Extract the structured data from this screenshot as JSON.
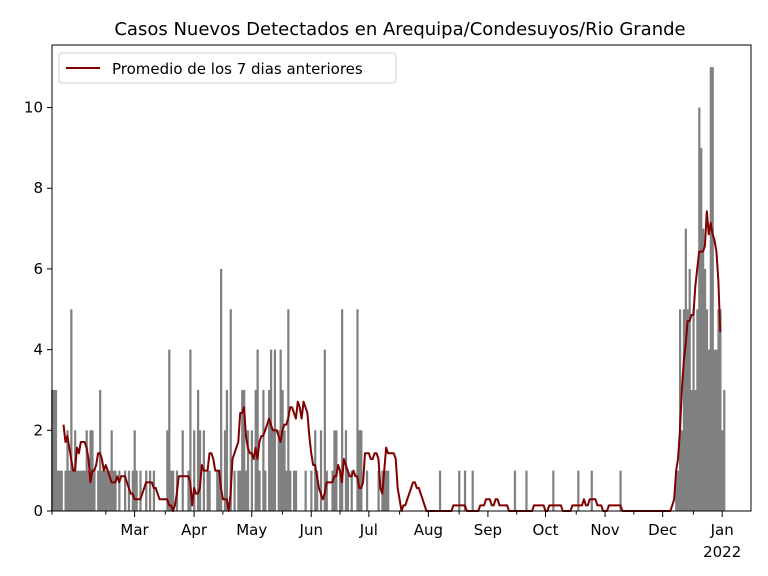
{
  "chart_data": {
    "type": "bar",
    "title": "Casos Nuevos Detectados en Arequipa/Condesuyos/Rio Grande",
    "xlabel": "",
    "ylabel": "",
    "ylim": [
      0,
      11.55
    ],
    "x_range": [
      "2021-02-01",
      "2022-01-31"
    ],
    "yticks": [
      0,
      2,
      4,
      6,
      8,
      10
    ],
    "xticks": [
      {
        "date": "2021-03-01",
        "label": "Mar"
      },
      {
        "date": "2021-04-01",
        "label": "Apr"
      },
      {
        "date": "2021-05-01",
        "label": "May"
      },
      {
        "date": "2021-06-01",
        "label": "Jun"
      },
      {
        "date": "2021-07-01",
        "label": "Jul"
      },
      {
        "date": "2021-08-01",
        "label": "Aug"
      },
      {
        "date": "2021-09-01",
        "label": "Sep"
      },
      {
        "date": "2021-10-01",
        "label": "Oct"
      },
      {
        "date": "2021-11-01",
        "label": "Nov"
      },
      {
        "date": "2021-12-01",
        "label": "Dec"
      },
      {
        "date": "2022-01-01",
        "label": "Jan"
      }
    ],
    "year_label": "2022",
    "bars": {
      "color": "#808080",
      "start": "2021-02-01",
      "values": [
        3,
        3,
        3,
        1,
        1,
        1,
        0,
        1,
        2,
        1,
        5,
        1,
        2,
        1,
        1,
        1,
        1,
        1,
        2,
        1,
        2,
        2,
        1,
        0,
        1,
        3,
        1,
        1,
        1,
        1,
        1,
        2,
        1,
        1,
        0,
        1,
        0,
        0,
        1,
        0,
        1,
        0,
        1,
        2,
        1,
        0,
        1,
        0,
        0,
        1,
        0,
        1,
        0,
        1,
        0,
        0,
        0,
        0,
        0,
        0,
        2,
        4,
        1,
        1,
        0,
        1,
        0,
        0,
        2,
        0,
        0,
        1,
        4,
        0,
        2,
        0,
        3,
        2,
        0,
        2,
        0,
        1,
        1,
        0,
        0,
        0,
        1,
        1,
        6,
        0,
        2,
        3,
        0,
        5,
        0,
        1,
        0,
        1,
        1,
        3,
        3,
        1,
        2,
        0,
        2,
        0,
        3,
        4,
        1,
        0,
        3,
        1,
        0,
        3,
        4,
        2,
        4,
        0,
        2,
        4,
        3,
        2,
        1,
        5,
        1,
        0,
        1,
        1,
        0,
        0,
        0,
        0,
        1,
        0,
        0,
        1,
        0,
        2,
        1,
        0,
        2,
        0,
        4,
        1,
        0,
        0,
        1,
        2,
        2,
        0,
        1,
        5,
        0,
        2,
        1,
        0,
        1,
        0,
        0,
        5,
        2,
        2,
        0,
        0,
        1,
        0,
        0,
        0,
        0,
        0,
        1,
        0,
        1,
        1,
        1,
        1,
        0,
        0,
        0,
        0,
        0,
        0,
        0,
        0,
        0,
        0,
        0,
        0,
        0,
        0,
        0,
        0,
        0,
        0,
        0,
        0,
        0,
        0,
        0,
        0,
        0,
        0,
        1,
        0,
        0,
        0,
        0,
        0,
        0,
        0,
        0,
        0,
        1,
        0,
        0,
        1,
        0,
        0,
        0,
        1,
        0,
        0,
        0,
        0,
        0,
        0,
        0,
        0,
        0,
        0,
        0,
        0,
        0,
        0,
        0,
        0,
        0,
        0,
        0,
        0,
        0,
        1,
        0,
        0,
        0,
        0,
        0,
        1,
        0,
        0,
        0,
        0,
        0,
        0,
        0,
        0,
        0,
        0,
        0,
        0,
        0,
        1,
        0,
        0,
        0,
        0,
        0,
        0,
        0,
        0,
        0,
        0,
        0,
        0,
        1,
        0,
        0,
        0,
        0,
        0,
        0,
        1,
        0,
        0,
        0,
        0,
        0,
        0,
        0,
        0,
        0,
        0,
        0,
        0,
        0,
        0,
        1,
        0,
        0,
        0,
        0,
        0,
        0,
        0,
        0,
        0,
        0,
        0,
        0,
        0,
        0,
        0,
        0,
        0,
        0,
        0,
        0,
        0,
        0,
        0,
        0,
        0,
        0,
        0,
        0,
        1,
        1,
        5,
        2,
        5,
        7,
        5,
        6,
        3,
        5,
        3,
        5,
        10,
        9,
        7,
        6,
        5,
        4,
        11,
        11,
        4,
        4,
        5,
        5,
        2,
        3
      ]
    },
    "series": [
      {
        "name": "Promedio de los 7 dias anteriores",
        "type": "line",
        "color": "#800000",
        "start": "2021-02-01",
        "values": [
          null,
          null,
          null,
          null,
          null,
          null,
          2.14,
          1.71,
          1.86,
          1.57,
          1.29,
          1.0,
          1.0,
          1.57,
          1.43,
          1.71,
          1.71,
          1.71,
          1.57,
          1.29,
          0.71,
          1.0,
          1.0,
          1.14,
          1.43,
          1.43,
          1.29,
          1.0,
          1.14,
          1.0,
          0.86,
          0.71,
          0.71,
          0.71,
          0.86,
          0.71,
          0.86,
          0.86,
          0.86,
          0.71,
          0.57,
          0.43,
          0.43,
          0.29,
          0.29,
          0.29,
          0.29,
          0.43,
          0.57,
          0.71,
          0.71,
          0.71,
          0.71,
          0.57,
          0.57,
          0.43,
          0.29,
          0.29,
          0.29,
          0.29,
          0.29,
          0.14,
          0.14,
          0.0,
          0.14,
          0.43,
          0.86,
          0.86,
          0.86,
          0.86,
          0.86,
          0.86,
          0.71,
          0.14,
          0.57,
          0.43,
          0.43,
          0.57,
          1.14,
          1.0,
          1.0,
          1.0,
          1.43,
          1.43,
          1.29,
          1.0,
          1.0,
          1.0,
          0.57,
          0.29,
          0.29,
          0.29,
          0.0,
          0.43,
          1.29,
          1.43,
          1.57,
          1.71,
          2.43,
          2.43,
          2.57,
          1.86,
          1.57,
          1.43,
          1.43,
          1.29,
          1.57,
          1.29,
          1.71,
          1.86,
          1.86,
          2.0,
          2.14,
          2.29,
          2.14,
          2.0,
          2.0,
          2.0,
          1.86,
          1.71,
          2.0,
          2.14,
          2.14,
          2.29,
          2.57,
          2.57,
          2.43,
          2.29,
          2.71,
          2.57,
          2.29,
          2.71,
          2.57,
          2.43,
          1.86,
          1.43,
          1.14,
          1.14,
          0.86,
          0.57,
          0.43,
          0.29,
          0.43,
          0.71,
          0.71,
          0.71,
          0.71,
          0.86,
          0.86,
          1.14,
          1.0,
          0.71,
          1.29,
          1.14,
          1.0,
          0.86,
          0.86,
          1.0,
          0.86,
          0.86,
          0.57,
          0.57,
          0.71,
          1.43,
          1.43,
          1.43,
          1.29,
          1.29,
          1.43,
          1.43,
          1.29,
          0.57,
          0.43,
          1.0,
          1.57,
          1.43,
          1.43,
          1.43,
          1.43,
          1.29,
          0.57,
          0.29,
          0.0,
          0.14,
          0.14,
          0.29,
          0.43,
          0.57,
          0.71,
          0.71,
          0.57,
          0.57,
          0.43,
          0.29,
          0.14,
          0.0,
          0.0,
          0.0,
          0.0,
          0.0,
          0.0,
          0.0,
          0.0,
          0.0,
          0.0,
          0.0,
          0.0,
          0.0,
          0.0,
          0.14,
          0.14,
          0.14,
          0.14,
          0.14,
          0.14,
          0.14,
          0.0,
          0.0,
          0.0,
          0.0,
          0.0,
          0.0,
          0.0,
          0.14,
          0.14,
          0.14,
          0.29,
          0.29,
          0.29,
          0.14,
          0.14,
          0.29,
          0.29,
          0.14,
          0.14,
          0.14,
          0.14,
          0.14,
          0.0,
          0.0,
          0.0,
          0.0,
          0.0,
          0.0,
          0.0,
          0.0,
          0.0,
          0.0,
          0.0,
          0.0,
          0.0,
          0.14,
          0.14,
          0.14,
          0.14,
          0.14,
          0.14,
          0.0,
          0.0,
          0.14,
          0.14,
          0.14,
          0.14,
          0.14,
          0.14,
          0.14,
          0.0,
          0.0,
          0.0,
          0.0,
          0.0,
          0.14,
          0.14,
          0.14,
          0.14,
          0.14,
          0.14,
          0.29,
          0.14,
          0.14,
          0.29,
          0.29,
          0.29,
          0.29,
          0.14,
          0.14,
          0.14,
          0.0,
          0.0,
          0.0,
          0.14,
          0.14,
          0.14,
          0.14,
          0.14,
          0.14,
          0.14,
          0.0,
          0.0,
          0.0,
          0.0,
          0.0,
          0.0,
          0.0,
          0.0,
          0.0,
          0.0,
          0.0,
          0.0,
          0.0,
          0.0,
          0.0,
          0.0,
          0.0,
          0.0,
          0.0,
          0.0,
          0.0,
          0.0,
          0.0,
          0.0,
          0.0,
          0.0,
          0.14,
          0.29,
          1.0,
          1.29,
          2.0,
          3.0,
          3.71,
          4.14,
          4.71,
          4.71,
          4.86,
          4.86,
          5.57,
          6.0,
          6.43,
          6.43,
          6.43,
          6.57,
          7.43,
          6.86,
          7.14,
          6.86,
          6.71,
          6.43,
          5.71,
          4.43
        ]
      }
    ],
    "legend": {
      "position": "upper-left"
    },
    "grid": false
  }
}
